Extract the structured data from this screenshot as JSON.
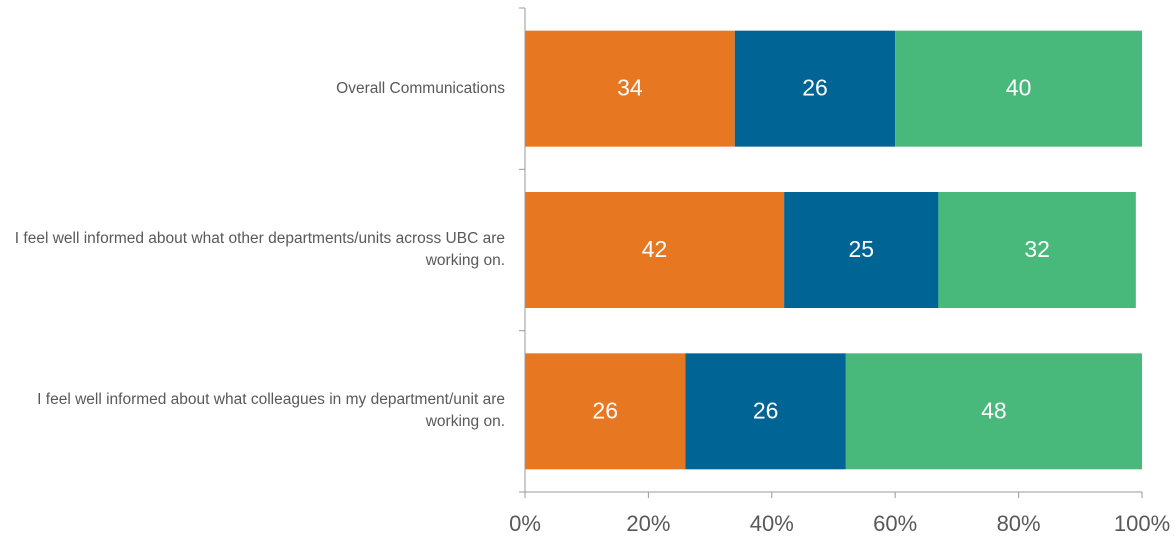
{
  "chart_data": {
    "type": "stacked_barh",
    "categories": [
      "Overall Communications",
      "I feel well informed about what other departments/units across UBC are working on.",
      "I feel well informed about what colleagues in my department/unit are working on."
    ],
    "series": [
      {
        "color": "#e87722",
        "values": [
          34,
          42,
          26
        ]
      },
      {
        "color": "#006494",
        "values": [
          26,
          25,
          26
        ]
      },
      {
        "color": "#48b97a",
        "values": [
          40,
          32,
          48
        ]
      }
    ],
    "xlim": [
      0,
      100
    ],
    "xticks": [
      {
        "value": 0,
        "label": "0%"
      },
      {
        "value": 20,
        "label": "20%"
      },
      {
        "value": 40,
        "label": "40%"
      },
      {
        "value": 60,
        "label": "60%"
      },
      {
        "value": 80,
        "label": "80%"
      },
      {
        "value": 100,
        "label": "100%"
      }
    ]
  }
}
